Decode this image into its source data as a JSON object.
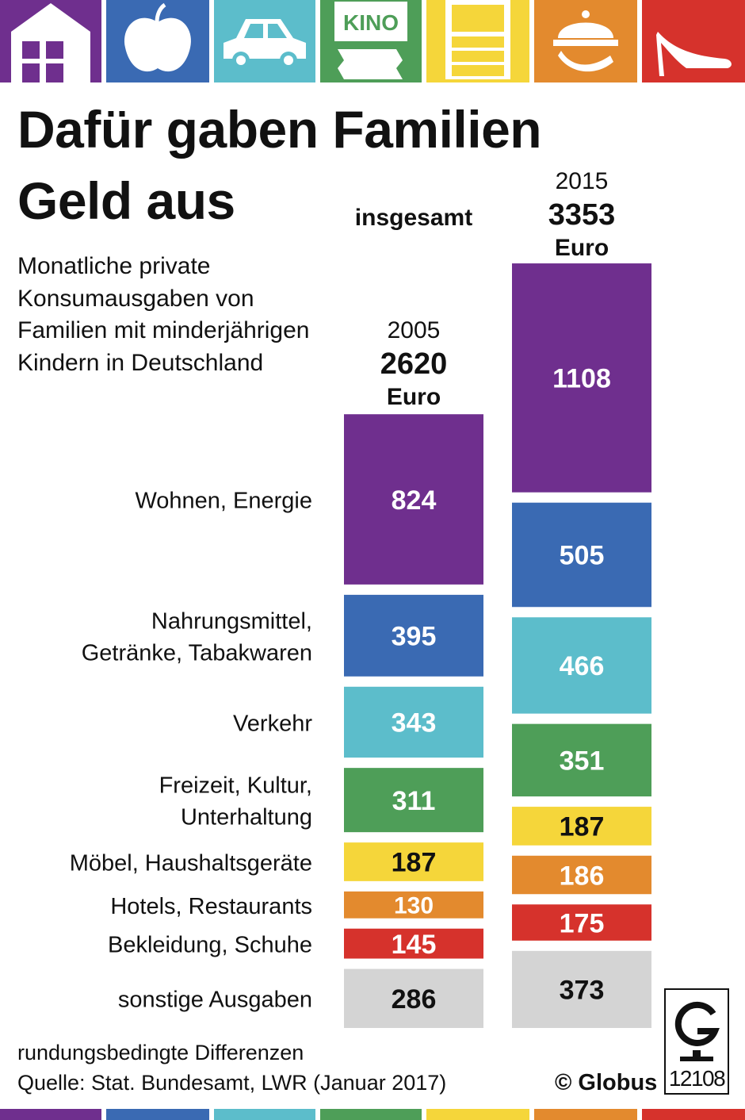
{
  "title": "Dafür gaben Familien Geld aus",
  "subtitle": "Monatliche private Konsumausgaben von Familien mit minderjährigen Kindern in Deutschland",
  "total_label": "insgesamt",
  "unit": "Euro",
  "footnote": "rundungsbedingte Differenzen",
  "source": "Quelle: Stat. Bundesamt, LWR (Januar 2017)",
  "copyright": "© Globus",
  "graphic_id": "12108",
  "icons": [
    {
      "name": "house-icon",
      "color": "#6f2f8e"
    },
    {
      "name": "apple-icon",
      "color": "#3a6ab3"
    },
    {
      "name": "car-icon",
      "color": "#5cbdcb"
    },
    {
      "name": "cinema-ticket-icon",
      "color": "#4e9e58",
      "text": "KINO"
    },
    {
      "name": "cabinet-icon",
      "color": "#f5d63a"
    },
    {
      "name": "serving-cloche-icon",
      "color": "#e38a2e"
    },
    {
      "name": "high-heel-shoe-icon",
      "color": "#d6322c"
    }
  ],
  "chart_data": {
    "type": "bar",
    "stacked": true,
    "title": "Dafür gaben Familien Geld aus",
    "unit": "Euro",
    "categories": [
      "Wohnen, Energie",
      "Nahrungsmittel, Getränke, Tabakwaren",
      "Verkehr",
      "Freizeit, Kultur, Unterhaltung",
      "Möbel, Haushaltsgeräte",
      "Hotels, Restaurants",
      "Bekleidung, Schuhe",
      "sonstige Ausgaben"
    ],
    "category_lines": [
      [
        "Wohnen, Energie"
      ],
      [
        "Nahrungsmittel,",
        "Getränke, Tabakwaren"
      ],
      [
        "Verkehr"
      ],
      [
        "Freizeit, Kultur,",
        "Unterhaltung"
      ],
      [
        "Möbel, Haushaltsgeräte"
      ],
      [
        "Hotels, Restaurants"
      ],
      [
        "Bekleidung, Schuhe"
      ],
      [
        "sonstige Ausgaben"
      ]
    ],
    "colors": [
      "#6f2f8e",
      "#3a6ab3",
      "#5cbdcb",
      "#4e9e58",
      "#f5d63a",
      "#e38a2e",
      "#d6322c",
      "#d4d4d4"
    ],
    "label_colors": [
      "#ffffff",
      "#ffffff",
      "#ffffff",
      "#ffffff",
      "#111111",
      "#ffffff",
      "#ffffff",
      "#111111"
    ],
    "series": [
      {
        "name": "2005",
        "total": 2620,
        "values": [
          824,
          395,
          343,
          311,
          187,
          130,
          145,
          286
        ]
      },
      {
        "name": "2015",
        "total": 3353,
        "values": [
          1108,
          505,
          466,
          351,
          187,
          186,
          175,
          373
        ]
      }
    ]
  }
}
